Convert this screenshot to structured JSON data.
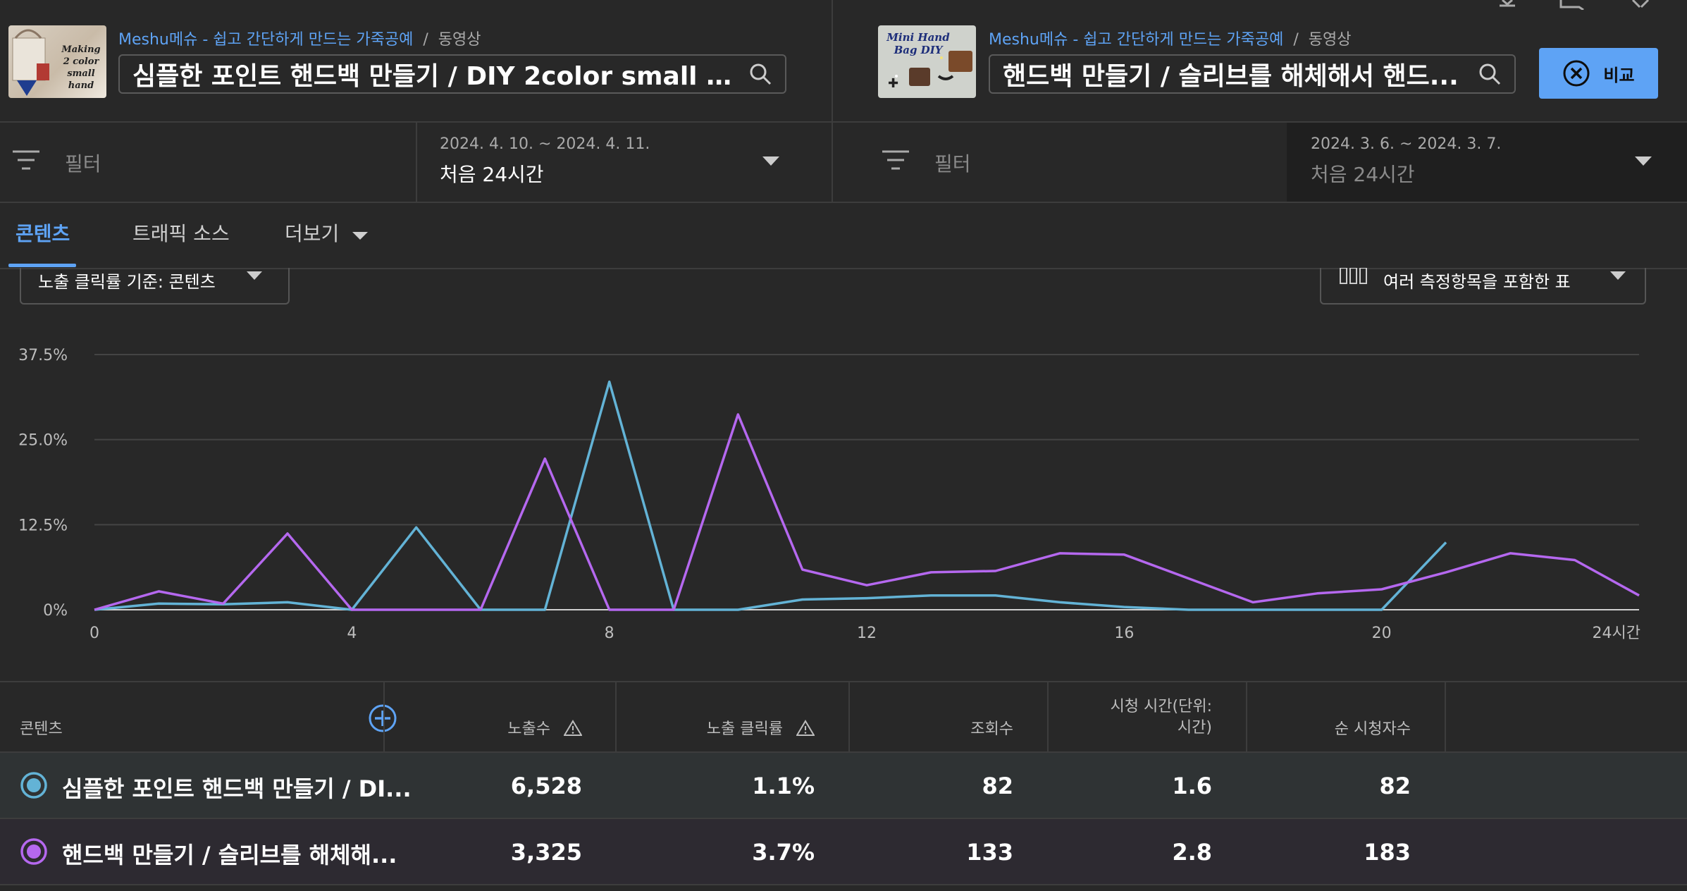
{
  "left": {
    "thumbnail_text": "Making 2 color small hand",
    "channel": "Meshu메슈 - 쉽고 간단하게 만드는 가죽공예",
    "crumb_type": "동영상",
    "video_title": "심플한 포인트 핸드백 만들기 / DIY 2color small ha...",
    "filter_placeholder": "필터",
    "date_range": "2024. 4. 10. ~ 2024. 4. 11.",
    "date_label": "처음 24시간"
  },
  "right": {
    "thumbnail_text": "Mini Hand Bag DIY",
    "channel": "Meshu메슈 - 쉽고 간단하게 만드는 가죽공예",
    "crumb_type": "동영상",
    "video_title": "핸드백 만들기 / 슬리브를 해체해서 핸드...",
    "filter_placeholder": "필터",
    "date_range": "2024. 3. 6. ~ 2024. 3. 7.",
    "date_label": "처음 24시간",
    "compare_label": "비교"
  },
  "tabs": [
    {
      "label": "콘텐츠",
      "active": true
    },
    {
      "label": "트래픽 소스",
      "active": false
    },
    {
      "label": "더보기",
      "active": false
    }
  ],
  "metric_dropdown": "노출 클릭률 기준: 콘텐츠",
  "view_dropdown": "여러 측정항목을 포함한 표",
  "chart_data": {
    "type": "line",
    "x_tick_labels": [
      "0",
      "4",
      "8",
      "12",
      "16",
      "20",
      "24시간"
    ],
    "y_tick_labels": [
      "0%",
      "12.5%",
      "25.0%",
      "37.5%"
    ],
    "xlim": [
      0,
      24
    ],
    "ylim": [
      0,
      37.5
    ],
    "series": [
      {
        "color": "#63b3d6",
        "x": [
          0,
          1,
          2,
          3,
          4,
          5,
          6,
          7,
          8,
          9,
          10,
          11,
          12,
          13,
          14,
          15,
          16,
          17,
          18,
          19,
          20,
          21
        ],
        "values": [
          0,
          0.9,
          0.8,
          1.1,
          0,
          12.1,
          0,
          0,
          33.5,
          0,
          0,
          1.5,
          1.7,
          2.1,
          2.1,
          1.1,
          0.4,
          0,
          0,
          0,
          0,
          9.9
        ]
      },
      {
        "color": "#b568ef",
        "x": [
          0,
          1,
          2,
          3,
          4,
          5,
          6,
          7,
          8,
          9,
          10,
          11,
          12,
          13,
          14,
          15,
          16,
          17,
          18,
          19,
          20,
          21,
          22,
          23,
          24
        ],
        "values": [
          0,
          2.7,
          0.9,
          11.2,
          0,
          0,
          0,
          22.2,
          0,
          0,
          28.7,
          5.9,
          3.6,
          5.5,
          5.7,
          8.3,
          8.1,
          4.6,
          1.1,
          2.4,
          3.0,
          5.5,
          8.3,
          7.3,
          2.1
        ]
      }
    ]
  },
  "table": {
    "headers": {
      "content": "콘텐츠",
      "impressions": "노출수",
      "ctr": "노출 클릭률",
      "views": "조회수",
      "watch_time_1": "시청 시간(단위:",
      "watch_time_2": "시간)",
      "unique_viewers": "순 시청자수"
    },
    "rows": [
      {
        "title": "심플한 포인트 핸드백 만들기 / DI...",
        "impressions": "6,528",
        "ctr": "1.1%",
        "views": "82",
        "watch_time": "1.6",
        "unique_viewers": "82",
        "color": "#63b3d6"
      },
      {
        "title": "핸드백 만들기 / 슬리브를 해체해...",
        "impressions": "3,325",
        "ctr": "3.7%",
        "views": "133",
        "watch_time": "2.8",
        "unique_viewers": "183",
        "color": "#b568ef"
      }
    ]
  }
}
